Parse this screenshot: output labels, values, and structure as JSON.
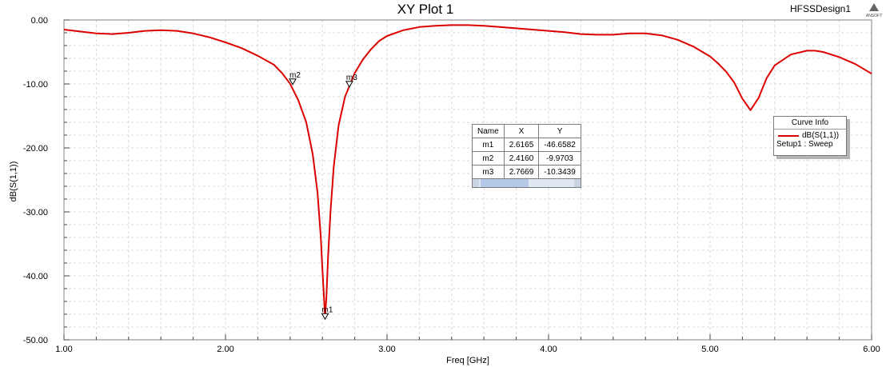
{
  "window": {
    "design_name": "HFSSDesign1",
    "logo_text": "ANSOFT"
  },
  "chart_data": {
    "type": "line",
    "title": "XY Plot 1",
    "xlabel": "Freq [GHz]",
    "ylabel": "dB(S(1,1))",
    "xlim": [
      1.0,
      6.0
    ],
    "ylim": [
      -50.0,
      0.0
    ],
    "x_ticks": [
      "1.00",
      "2.00",
      "3.00",
      "4.00",
      "5.00",
      "6.00"
    ],
    "y_ticks": [
      "0.00",
      "-10.00",
      "-20.00",
      "-30.00",
      "-40.00",
      "-50.00"
    ],
    "grid": true,
    "series": [
      {
        "name": "dB(S(1,1))",
        "setup": "Setup1 : Sweep",
        "color": "#dd0000",
        "x": [
          1.0,
          1.1,
          1.2,
          1.3,
          1.4,
          1.5,
          1.6,
          1.7,
          1.8,
          1.9,
          2.0,
          2.1,
          2.2,
          2.3,
          2.35,
          2.4,
          2.45,
          2.5,
          2.54,
          2.57,
          2.59,
          2.6,
          2.61,
          2.6165,
          2.625,
          2.635,
          2.65,
          2.67,
          2.7,
          2.74,
          2.7669,
          2.8,
          2.85,
          2.9,
          2.95,
          3.0,
          3.1,
          3.2,
          3.3,
          3.4,
          3.5,
          3.6,
          3.7,
          3.8,
          3.9,
          4.0,
          4.1,
          4.2,
          4.3,
          4.4,
          4.5,
          4.6,
          4.7,
          4.8,
          4.9,
          5.0,
          5.05,
          5.1,
          5.15,
          5.2,
          5.25,
          5.3,
          5.35,
          5.4,
          5.5,
          5.6,
          5.65,
          5.7,
          5.8,
          5.9,
          6.0
        ],
        "y": [
          -1.5,
          -1.8,
          -2.1,
          -2.2,
          -2.0,
          -1.7,
          -1.6,
          -1.7,
          -2.1,
          -2.7,
          -3.5,
          -4.4,
          -5.6,
          -7.0,
          -8.3,
          -9.97,
          -12.5,
          -16.0,
          -21.0,
          -27.0,
          -34.0,
          -39.0,
          -43.5,
          -46.6582,
          -43.0,
          -37.0,
          -30.0,
          -23.0,
          -16.5,
          -12.0,
          -10.3439,
          -8.3,
          -6.2,
          -4.6,
          -3.3,
          -2.5,
          -1.6,
          -1.1,
          -0.9,
          -0.8,
          -0.8,
          -0.9,
          -1.1,
          -1.3,
          -1.5,
          -1.7,
          -1.9,
          -2.2,
          -2.3,
          -2.3,
          -2.1,
          -2.1,
          -2.4,
          -3.1,
          -4.2,
          -5.7,
          -6.8,
          -8.1,
          -9.8,
          -12.3,
          -14.1,
          -12.2,
          -9.1,
          -7.1,
          -5.4,
          -4.8,
          -4.8,
          -5.0,
          -5.8,
          -6.9,
          -8.4
        ]
      }
    ],
    "markers": [
      {
        "name": "m1",
        "x": 2.6165,
        "y": -46.6582,
        "x_text": "2.6165",
        "y_text": "-46.6582"
      },
      {
        "name": "m2",
        "x": 2.416,
        "y": -9.9703,
        "x_text": "2.4160",
        "y_text": "-9.9703"
      },
      {
        "name": "m3",
        "x": 2.7669,
        "y": -10.3439,
        "x_text": "2.7669",
        "y_text": "-10.3439"
      }
    ],
    "marker_table": {
      "headers": [
        "Name",
        "X",
        "Y"
      ]
    },
    "legend": {
      "title": "Curve Info",
      "placement": "right"
    }
  }
}
